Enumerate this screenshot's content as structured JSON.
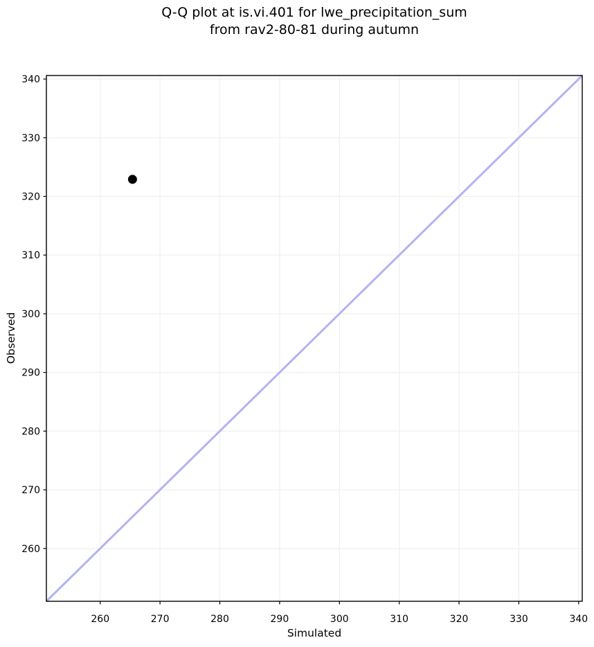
{
  "figure": {
    "title_line1": "Q-Q plot at is.vi.401 for lwe_precipitation_sum",
    "title_line2": "from rav2-80-81 during autumn"
  },
  "chart_data": {
    "type": "scatter",
    "title": "Q-Q plot at is.vi.401 for lwe_precipitation_sum\nfrom rav2-80-81 during autumn",
    "xlabel": "Simulated",
    "ylabel": "Observed",
    "xlim": [
      251.0,
      340.6
    ],
    "ylim": [
      251.0,
      340.6
    ],
    "xticks": [
      260,
      270,
      280,
      290,
      300,
      310,
      320,
      330,
      340
    ],
    "yticks": [
      260,
      270,
      280,
      290,
      300,
      310,
      320,
      330,
      340
    ],
    "grid": true,
    "legend": null,
    "points": [
      {
        "x": 265.4,
        "y": 322.9
      }
    ],
    "identity_line": {
      "from": [
        251.0,
        251.0
      ],
      "to": [
        340.6,
        340.6
      ],
      "color": "#b2b2f2",
      "width": 3
    },
    "point_style": {
      "color": "#000000",
      "radius": 6.5
    },
    "colors": {
      "grid": "#efefef",
      "spine": "#000000",
      "tick_label": "#000000",
      "background": "#ffffff"
    }
  }
}
